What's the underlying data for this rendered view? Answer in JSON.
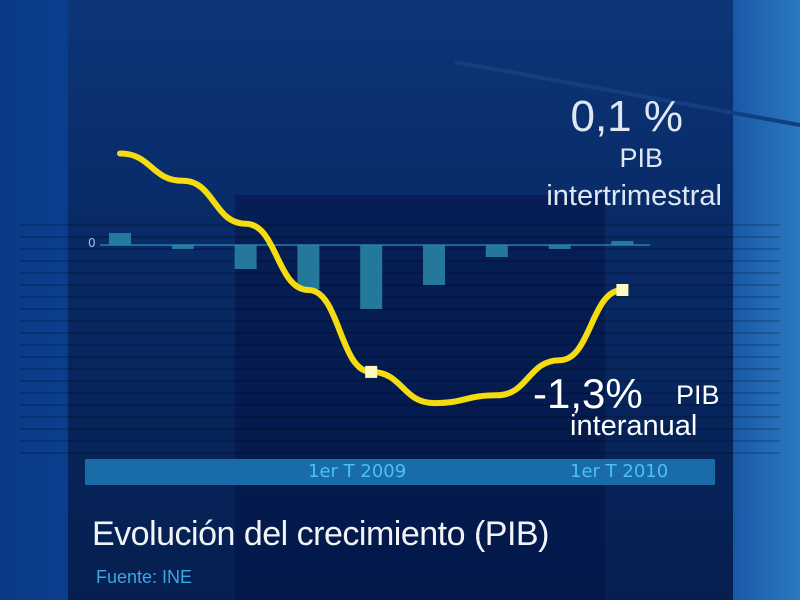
{
  "chart_data": {
    "type": "bar+line",
    "title": "Evolución del crecimiento (PIB)",
    "source": "Fuente: INE",
    "categories": [
      "",
      "",
      "",
      "",
      "1er T 2009",
      "",
      "",
      "",
      "1er T 2010"
    ],
    "tick_labels": [
      {
        "index": 4,
        "label": "1er T 2009"
      },
      {
        "index": 8,
        "label": "1er T 2010"
      }
    ],
    "zero_label": "0",
    "series": [
      {
        "name": "PIB intertrimestral",
        "type": "bar",
        "values": [
          0.3,
          -0.1,
          -0.6,
          -1.1,
          -1.6,
          -1.0,
          -0.3,
          -0.1,
          0.1
        ],
        "color": "#2a8aa8"
      },
      {
        "name": "PIB interanual",
        "type": "line",
        "values": [
          2.2,
          1.5,
          0.4,
          -1.3,
          -3.4,
          -4.2,
          -4.0,
          -3.1,
          -1.3
        ],
        "color": "#f5dc10",
        "markers": [
          4,
          8
        ]
      }
    ],
    "annotations": {
      "quarterly": {
        "value": "0,1 %",
        "line1": "PIB",
        "line2": "intertrimestral"
      },
      "annual": {
        "value": "-1,3%",
        "line1": "PIB",
        "line2": "interanual"
      }
    },
    "grid": false,
    "legend": "none"
  }
}
